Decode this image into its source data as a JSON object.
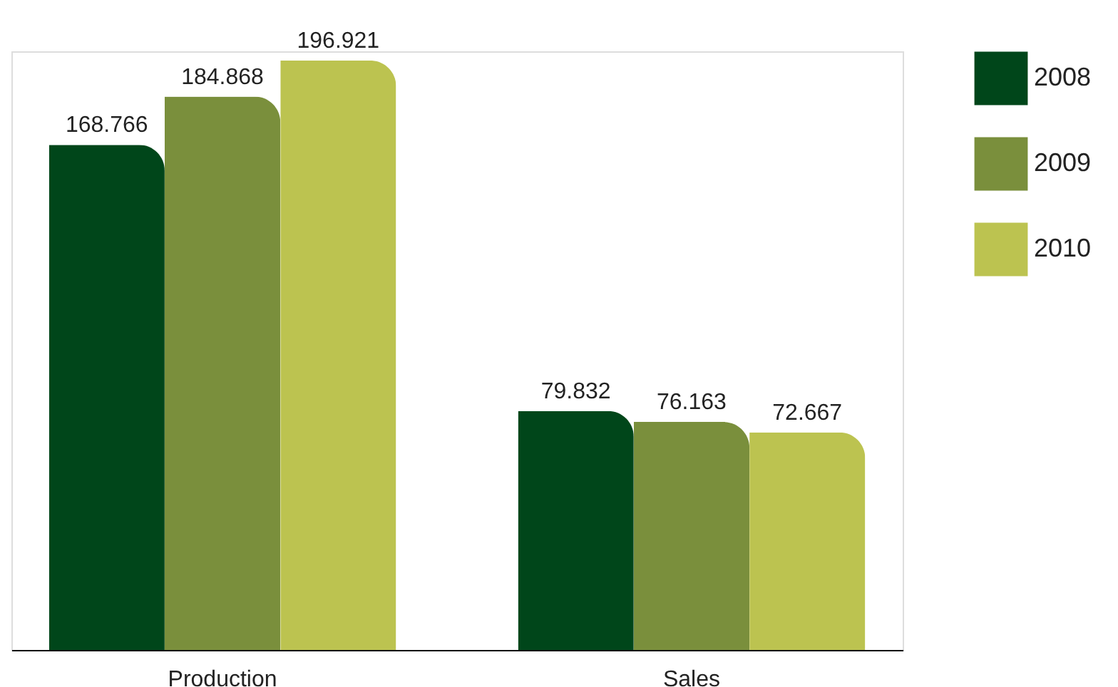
{
  "chart_data": {
    "type": "bar",
    "categories": [
      "Production",
      "Sales"
    ],
    "series": [
      {
        "name": "2008",
        "color": "#00461a",
        "values": [
          168.766,
          79.832
        ]
      },
      {
        "name": "2009",
        "color": "#7a8f3c",
        "values": [
          184.868,
          76.163
        ]
      },
      {
        "name": "2010",
        "color": "#bcc350",
        "values": [
          196.921,
          72.667
        ]
      }
    ],
    "data_labels": true,
    "legend": "right"
  }
}
